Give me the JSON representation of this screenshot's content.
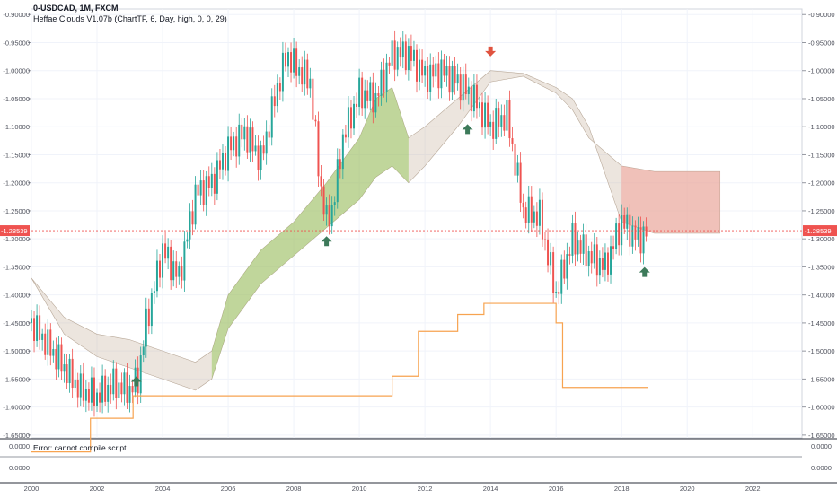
{
  "header": {
    "title": "0-USDCAD, 1M, FXCM",
    "indicator": "Heffae Clouds V1.07b (ChartTF, 6, Day, high, 0, 0, 29)"
  },
  "subpanel": {
    "error_text": "Error: cannot compile script",
    "y_labels": [
      "0.0000",
      "0.0000"
    ]
  },
  "price_label": "-1.28539",
  "colors": {
    "up": "#26a69a",
    "down": "#ef5350",
    "price_line": "#ef5350",
    "orange_line": "#f7a350",
    "arrow_up": "#3d7a5a",
    "arrow_down": "#e0533f",
    "cloud_green": "#8bc34a",
    "cloud_red": "#f4a49a",
    "cloud_grey": "#c8b4a0"
  },
  "chart_data": {
    "type": "candlestick",
    "symbol": "0-USDCAD",
    "timeframe": "1M",
    "ylim": [
      -1.655,
      -0.89
    ],
    "xlim": [
      2000,
      2023.5
    ],
    "y_ticks": [
      "-0.90000",
      "-0.95000",
      "-1.00000",
      "-1.05000",
      "-1.10000",
      "-1.15000",
      "-1.20000",
      "-1.25000",
      "-1.30000",
      "-1.35000",
      "-1.40000",
      "-1.45000",
      "-1.50000",
      "-1.55000",
      "-1.60000",
      "-1.65000"
    ],
    "x_ticks": [
      "2000",
      "2002",
      "2004",
      "2006",
      "2008",
      "2010",
      "2012",
      "2014",
      "2016",
      "2018",
      "2020",
      "2022"
    ],
    "last_price": -1.28539,
    "series": [
      {
        "name": "close",
        "x": [
          2000.0,
          2000.5,
          2001.0,
          2001.5,
          2002.0,
          2002.5,
          2003.0,
          2003.25,
          2003.5,
          2004.0,
          2004.5,
          2005.0,
          2005.5,
          2006.0,
          2006.5,
          2007.0,
          2007.5,
          2007.8,
          2008.0,
          2008.5,
          2008.8,
          2009.0,
          2009.2,
          2009.5,
          2010.0,
          2010.5,
          2011.0,
          2011.5,
          2012.0,
          2012.5,
          2013.0,
          2013.5,
          2014.0,
          2014.5,
          2015.0,
          2015.5,
          2016.0,
          2016.5,
          2017.0,
          2017.5,
          2018.0,
          2018.5,
          2018.75
        ],
        "values": [
          -1.45,
          -1.49,
          -1.53,
          -1.57,
          -1.58,
          -1.56,
          -1.57,
          -1.55,
          -1.45,
          -1.32,
          -1.37,
          -1.22,
          -1.2,
          -1.14,
          -1.11,
          -1.16,
          -1.03,
          -0.97,
          -0.99,
          -1.02,
          -1.2,
          -1.27,
          -1.24,
          -1.12,
          -1.04,
          -1.05,
          -0.97,
          -0.97,
          -1.01,
          -1.0,
          -1.02,
          -1.05,
          -1.1,
          -1.08,
          -1.25,
          -1.26,
          -1.4,
          -1.3,
          -1.33,
          -1.35,
          -1.27,
          -1.3,
          -1.29
        ]
      },
      {
        "name": "orange_line",
        "x": [
          2000.0,
          2001.8,
          2001.8,
          2003.1,
          2003.1,
          2011.0,
          2011.0,
          2011.8,
          2011.8,
          2013.0,
          2013.0,
          2013.8,
          2013.8,
          2016.0,
          2016.0,
          2016.2,
          2016.2,
          2018.8
        ],
        "values": [
          -1.68,
          -1.68,
          -1.62,
          -1.62,
          -1.58,
          -1.58,
          -1.545,
          -1.545,
          -1.465,
          -1.465,
          -1.435,
          -1.435,
          -1.415,
          -1.415,
          -1.45,
          -1.45,
          -1.565,
          -1.565
        ]
      },
      {
        "name": "cloud_upper",
        "x": [
          2000.0,
          2001.0,
          2002.0,
          2003.0,
          2004.0,
          2005.0,
          2005.5,
          2006.0,
          2007.0,
          2008.0,
          2009.0,
          2010.0,
          2010.5,
          2011.0,
          2011.5,
          2012.0,
          2013.0,
          2014.0,
          2015.0,
          2016.0,
          2016.5,
          2017.0,
          2018.0,
          2019.0,
          2020.0,
          2021.0
        ],
        "values": [
          -1.37,
          -1.44,
          -1.47,
          -1.48,
          -1.5,
          -1.52,
          -1.5,
          -1.4,
          -1.32,
          -1.27,
          -1.2,
          -1.12,
          -1.05,
          -1.03,
          -1.12,
          -1.1,
          -1.05,
          -1.0,
          -1.005,
          -1.03,
          -1.05,
          -1.1,
          -1.27,
          -1.29,
          -1.29,
          -1.29
        ]
      },
      {
        "name": "cloud_lower",
        "x": [
          2000.0,
          2001.0,
          2002.0,
          2003.0,
          2004.0,
          2005.0,
          2005.5,
          2006.0,
          2007.0,
          2008.0,
          2009.0,
          2010.0,
          2010.5,
          2011.0,
          2011.5,
          2012.0,
          2013.0,
          2014.0,
          2015.0,
          2016.0,
          2016.5,
          2017.0,
          2018.0,
          2019.0,
          2020.0,
          2021.0
        ],
        "values": [
          -1.37,
          -1.47,
          -1.51,
          -1.53,
          -1.55,
          -1.57,
          -1.55,
          -1.46,
          -1.38,
          -1.33,
          -1.28,
          -1.23,
          -1.19,
          -1.17,
          -1.2,
          -1.17,
          -1.1,
          -1.02,
          -1.01,
          -1.04,
          -1.07,
          -1.12,
          -1.17,
          -1.18,
          -1.18,
          -1.18
        ]
      }
    ],
    "markers": [
      {
        "type": "arrow-up",
        "x": 2003.2,
        "y": -1.555
      },
      {
        "type": "arrow-up",
        "x": 2009.0,
        "y": -1.305
      },
      {
        "type": "arrow-up",
        "x": 2013.3,
        "y": -1.105
      },
      {
        "type": "arrow-down",
        "x": 2014.0,
        "y": -0.965
      },
      {
        "type": "arrow-up",
        "x": 2018.7,
        "y": -1.36
      }
    ]
  }
}
